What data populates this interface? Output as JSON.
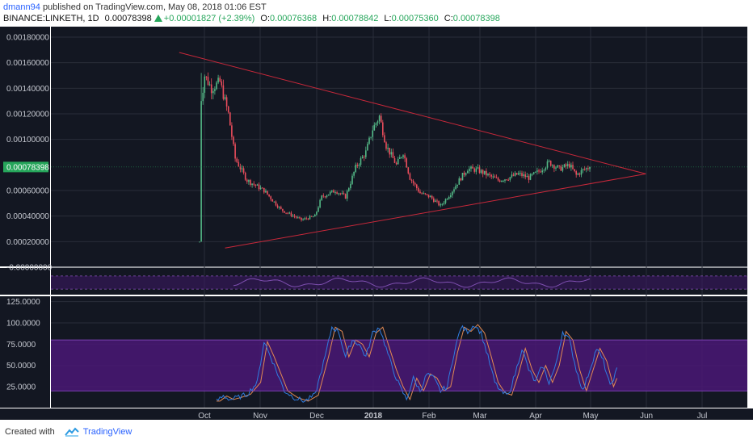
{
  "header": {
    "user": "dmann94",
    "published_text": "published on TradingView.com, May 08, 2018 01:06 EST",
    "symbol": "BINANCE:LINKETH, 1D",
    "last": "0.00078398",
    "change": "+0.00001827 (+2.39%)",
    "o_label": "O:",
    "o_value": "0.00076368",
    "h_label": "H:",
    "h_value": "0.00078842",
    "l_label": "L:",
    "l_value": "0.00075360",
    "c_label": "C:",
    "c_value": "0.00078398"
  },
  "footer": {
    "created_with": "Created with",
    "brand": "TradingView"
  },
  "colors": {
    "background": "#131722",
    "grid": "#2a2e39",
    "up": "#53b987",
    "down": "#eb4d5c",
    "trendline": "#c8283a",
    "stoch_k": "#2f7de1",
    "stoch_d": "#e38a52",
    "stoch_band": "#5a1e8a",
    "price_label_bg": "#26a65b"
  },
  "chart_data": {
    "type": "candlestick",
    "price_axis": {
      "ticks": [
        "0.00180000",
        "0.00160000",
        "0.00140000",
        "0.00120000",
        "0.00100000",
        "0.00078398",
        "0.00060000",
        "0.00040000",
        "0.00020000",
        "-0.00000000"
      ],
      "tick_values": [
        0.0018,
        0.0016,
        0.0014,
        0.0012,
        0.001,
        0.00078398,
        0.0006,
        0.0004,
        0.0002,
        0
      ],
      "last_price_label": "0.00078398",
      "range": [
        0,
        0.0018
      ]
    },
    "time_axis": {
      "labels": [
        "Oct",
        "Nov",
        "Dec",
        "2018",
        "Feb",
        "Mar",
        "Apr",
        "May",
        "Jun",
        "Jul"
      ],
      "bold_labels": [
        "2018"
      ]
    },
    "stoch_axis": {
      "ticks": [
        "125.0000",
        "100.0000",
        "75.0000",
        "50.0000",
        "25.0000"
      ],
      "tick_values": [
        125,
        100,
        75,
        50,
        25
      ],
      "band": [
        20,
        80
      ]
    },
    "price_anchors": [
      [
        0,
        0.0002
      ],
      [
        1,
        0.0013
      ],
      [
        3,
        0.0015
      ],
      [
        7,
        0.0014
      ],
      [
        12,
        0.00145
      ],
      [
        17,
        0.0012
      ],
      [
        21,
        0.00085
      ],
      [
        28,
        0.00068
      ],
      [
        38,
        0.0006
      ],
      [
        48,
        0.00045
      ],
      [
        60,
        0.00037
      ],
      [
        68,
        0.0004
      ],
      [
        72,
        0.00055
      ],
      [
        80,
        0.0006
      ],
      [
        86,
        0.00055
      ],
      [
        92,
        0.00078
      ],
      [
        98,
        0.0009
      ],
      [
        102,
        0.00108
      ],
      [
        106,
        0.00118
      ],
      [
        110,
        0.00095
      ],
      [
        116,
        0.0008
      ],
      [
        120,
        0.0009
      ],
      [
        124,
        0.0007
      ],
      [
        130,
        0.00058
      ],
      [
        136,
        0.00055
      ],
      [
        142,
        0.00048
      ],
      [
        148,
        0.00058
      ],
      [
        154,
        0.0007
      ],
      [
        158,
        0.00077
      ],
      [
        164,
        0.00076
      ],
      [
        170,
        0.00072
      ],
      [
        176,
        0.00068
      ],
      [
        182,
        0.0007
      ],
      [
        188,
        0.00073
      ],
      [
        194,
        0.0007
      ],
      [
        200,
        0.00075
      ],
      [
        206,
        0.00082
      ],
      [
        212,
        0.00077
      ],
      [
        218,
        0.0008
      ],
      [
        222,
        0.00072
      ],
      [
        226,
        0.00076
      ],
      [
        230,
        0.00078398
      ]
    ],
    "trendlines": [
      {
        "name": "upper",
        "from": {
          "day": -12,
          "price": 0.00168
        },
        "to": {
          "day": 263,
          "price": 0.00073
        }
      },
      {
        "name": "lower",
        "from": {
          "day": 15,
          "price": 0.00015
        },
        "to": {
          "day": 263,
          "price": 0.00073
        }
      }
    ],
    "stoch_anchors": [
      [
        10,
        8
      ],
      [
        14,
        14
      ],
      [
        18,
        10
      ],
      [
        22,
        12
      ],
      [
        28,
        16
      ],
      [
        34,
        30
      ],
      [
        38,
        78
      ],
      [
        42,
        60
      ],
      [
        46,
        40
      ],
      [
        50,
        20
      ],
      [
        56,
        12
      ],
      [
        62,
        8
      ],
      [
        68,
        15
      ],
      [
        74,
        60
      ],
      [
        78,
        95
      ],
      [
        82,
        90
      ],
      [
        86,
        60
      ],
      [
        90,
        80
      ],
      [
        94,
        75
      ],
      [
        98,
        60
      ],
      [
        102,
        88
      ],
      [
        106,
        95
      ],
      [
        110,
        70
      ],
      [
        114,
        45
      ],
      [
        118,
        25
      ],
      [
        122,
        10
      ],
      [
        126,
        35
      ],
      [
        130,
        20
      ],
      [
        134,
        40
      ],
      [
        138,
        35
      ],
      [
        142,
        20
      ],
      [
        146,
        25
      ],
      [
        150,
        65
      ],
      [
        154,
        95
      ],
      [
        158,
        90
      ],
      [
        162,
        98
      ],
      [
        166,
        88
      ],
      [
        170,
        60
      ],
      [
        174,
        30
      ],
      [
        178,
        18
      ],
      [
        182,
        15
      ],
      [
        186,
        40
      ],
      [
        190,
        70
      ],
      [
        194,
        45
      ],
      [
        198,
        30
      ],
      [
        202,
        50
      ],
      [
        206,
        30
      ],
      [
        210,
        50
      ],
      [
        214,
        90
      ],
      [
        218,
        80
      ],
      [
        222,
        45
      ],
      [
        226,
        20
      ],
      [
        230,
        45
      ],
      [
        234,
        70
      ],
      [
        238,
        55
      ],
      [
        242,
        25
      ],
      [
        246,
        45
      ]
    ]
  }
}
